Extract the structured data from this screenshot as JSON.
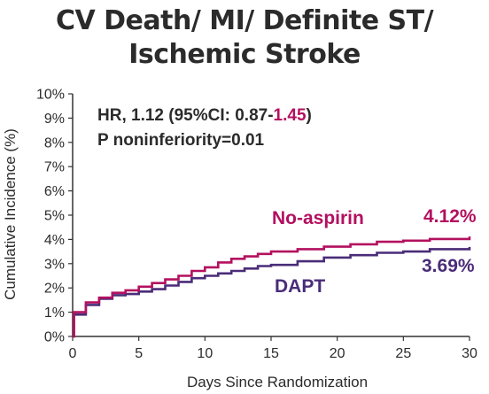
{
  "title_line1": "CV Death/ MI/ Definite ST/",
  "title_line2": "Ischemic Stroke",
  "annotation": {
    "hr_prefix": "HR, 1.12 (95%CI: 0.87-",
    "hr_highlight": "1.45",
    "hr_suffix": ")",
    "p_text": "P noninferiority=0.01"
  },
  "colors": {
    "text": "#2b2b2b",
    "axis": "#333333",
    "no_aspirin": "#b3105f",
    "dapt": "#4a2c78"
  },
  "chart_data": {
    "type": "line",
    "title": "CV Death/ MI/ Definite ST/ Ischemic Stroke",
    "xlabel": "Days Since Randomization",
    "ylabel": "Cumulative Incidence (%)",
    "xlim": [
      0,
      30
    ],
    "ylim": [
      0,
      10
    ],
    "x_ticks": [
      "0",
      "5",
      "10",
      "15",
      "20",
      "25",
      "30"
    ],
    "x_tick_values": [
      0,
      5,
      10,
      15,
      20,
      25,
      30
    ],
    "y_ticks": [
      "0%",
      "1%",
      "2%",
      "3%",
      "4%",
      "5%",
      "6%",
      "7%",
      "8%",
      "9%",
      "10%"
    ],
    "y_tick_values": [
      0,
      1,
      2,
      3,
      4,
      5,
      6,
      7,
      8,
      9,
      10
    ],
    "grid": false,
    "series": [
      {
        "name": "No-aspirin",
        "color_key": "no_aspirin",
        "end_label": "4.12%",
        "x": [
          0,
          0.1,
          1,
          2,
          3,
          4,
          5,
          6,
          7,
          8,
          9,
          10,
          11,
          12,
          13,
          14,
          15,
          17,
          19,
          21,
          23,
          25,
          27,
          30
        ],
        "y": [
          0,
          1.0,
          1.4,
          1.6,
          1.8,
          1.9,
          2.05,
          2.2,
          2.35,
          2.5,
          2.7,
          2.85,
          3.05,
          3.2,
          3.3,
          3.4,
          3.5,
          3.6,
          3.7,
          3.8,
          3.9,
          3.95,
          4.02,
          4.12
        ]
      },
      {
        "name": "DAPT",
        "color_key": "dapt",
        "end_label": "3.69%",
        "x": [
          0,
          0.1,
          1,
          2,
          3,
          4,
          5,
          6,
          7,
          8,
          9,
          10,
          11,
          12,
          13,
          14,
          15,
          17,
          19,
          21,
          23,
          25,
          27,
          30
        ],
        "y": [
          0,
          0.9,
          1.3,
          1.55,
          1.7,
          1.75,
          1.85,
          1.95,
          2.1,
          2.25,
          2.4,
          2.5,
          2.6,
          2.7,
          2.8,
          2.9,
          2.95,
          3.1,
          3.25,
          3.35,
          3.45,
          3.5,
          3.6,
          3.69
        ]
      }
    ]
  }
}
